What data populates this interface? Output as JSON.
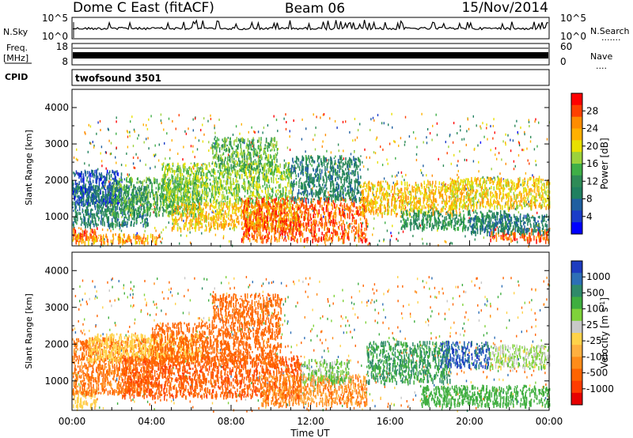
{
  "header": {
    "station": "Dome C East (fitACF)",
    "beam": "Beam 06",
    "date": "15/Nov/2014"
  },
  "side_labels": {
    "nsky": "N.Sky",
    "freq_line1": "Freq.",
    "freq_line2": "[MHz]",
    "cpid": "CPID",
    "nsearch": "N.Search",
    "nsearch_dots": ".......",
    "nave": "Nave",
    "nave_dots": "...."
  },
  "cpid_text": "twofsound 3501",
  "chart_data": [
    {
      "type": "line",
      "name": "noise-panel",
      "left_ticks": [
        "10^5",
        "10^0"
      ],
      "right_ticks": [
        "10^5",
        "10^0"
      ]
    },
    {
      "type": "line",
      "name": "freq-nave-panel",
      "left_ticks": [
        "18",
        "8"
      ],
      "right_ticks": [
        "60",
        "0"
      ]
    },
    {
      "type": "heatmap",
      "name": "power-panel",
      "ylabel": "Slant Range [km]",
      "ylim": [
        200,
        4500
      ],
      "yticks": [
        1000,
        2000,
        3000,
        4000
      ],
      "xlim": [
        0,
        24
      ],
      "colorbar": {
        "label": "Power [dB]",
        "labels": [
          "28",
          "24",
          "20",
          "16",
          "12",
          "8",
          "4"
        ],
        "colors": [
          "#ff0000",
          "#ff4000",
          "#ff8c00",
          "#ffb000",
          "#e8e000",
          "#9cd23c",
          "#3faf47",
          "#2e8b57",
          "#208060",
          "#1f5fa0",
          "#1a3cc8",
          "#0000ff"
        ]
      },
      "bands": [
        {
          "t0": 0.0,
          "t1": 1.3,
          "r0": 400,
          "r1": 720,
          "val": 28
        },
        {
          "t0": 0.0,
          "t1": 4.5,
          "r0": 320,
          "r1": 550,
          "val": 24
        },
        {
          "t0": 0.0,
          "t1": 3.8,
          "r0": 800,
          "r1": 1900,
          "val": 10
        },
        {
          "t0": 0.0,
          "t1": 2.5,
          "r0": 1400,
          "r1": 2300,
          "val": 6
        },
        {
          "t0": 2.0,
          "t1": 6.5,
          "r0": 1100,
          "r1": 2100,
          "val": 14
        },
        {
          "t0": 4.5,
          "t1": 11.0,
          "r0": 1400,
          "r1": 2500,
          "val": 17
        },
        {
          "t0": 5.0,
          "t1": 11.5,
          "r0": 700,
          "r1": 1400,
          "val": 22
        },
        {
          "t0": 7.0,
          "t1": 10.3,
          "r0": 2300,
          "r1": 3200,
          "val": 15
        },
        {
          "t0": 8.5,
          "t1": 14.8,
          "r0": 380,
          "r1": 1550,
          "val": 27
        },
        {
          "t0": 11.0,
          "t1": 14.5,
          "r0": 1500,
          "r1": 2700,
          "val": 10
        },
        {
          "t0": 14.5,
          "t1": 19.5,
          "r0": 1100,
          "r1": 2000,
          "val": 22
        },
        {
          "t0": 16.5,
          "t1": 22.0,
          "r0": 700,
          "r1": 1200,
          "val": 12
        },
        {
          "t0": 19.0,
          "t1": 24.0,
          "r0": 1300,
          "r1": 2100,
          "val": 21
        },
        {
          "t0": 21.0,
          "t1": 24.0,
          "r0": 380,
          "r1": 700,
          "val": 27
        },
        {
          "t0": 20.0,
          "t1": 24.0,
          "r0": 600,
          "r1": 1100,
          "val": 9
        }
      ]
    },
    {
      "type": "heatmap",
      "name": "velocity-panel",
      "xlabel": "Time UT",
      "ylabel": "Slant Range [km]",
      "ylim": [
        200,
        4500
      ],
      "yticks": [
        1000,
        2000,
        3000,
        4000
      ],
      "xlim": [
        0,
        24
      ],
      "xticks": [
        "00:00",
        "04:00",
        "08:00",
        "12:00",
        "16:00",
        "20:00",
        "00:00"
      ],
      "colorbar": {
        "label": "Velocity [m s",
        "label_sup": "-1",
        "label_end": "]",
        "labels": [
          "1000",
          "500",
          "100",
          "25",
          "-25",
          "-100",
          "-500",
          "-1000"
        ],
        "colors": [
          "#1e3cc0",
          "#2d6fb6",
          "#2f8a6a",
          "#3fae3f",
          "#7fd23a",
          "#c8c8c8",
          "#ffd24a",
          "#ffb040",
          "#ff8c1a",
          "#ff6400",
          "#ff3c00",
          "#e60000"
        ]
      },
      "bands": [
        {
          "t0": 0.0,
          "t1": 1.2,
          "r0": 320,
          "r1": 800,
          "val": -10
        },
        {
          "t0": 0.0,
          "t1": 4.0,
          "r0": 700,
          "r1": 2200,
          "val": -120
        },
        {
          "t0": 0.8,
          "t1": 6.5,
          "r0": 1600,
          "r1": 2300,
          "val": 0
        },
        {
          "t0": 2.5,
          "t1": 11.5,
          "r0": 600,
          "r1": 1700,
          "val": -250
        },
        {
          "t0": 4.0,
          "t1": 10.5,
          "r0": 1500,
          "r1": 2600,
          "val": -180
        },
        {
          "t0": 7.0,
          "t1": 10.5,
          "r0": 2600,
          "r1": 3400,
          "val": -150
        },
        {
          "t0": 9.5,
          "t1": 14.8,
          "r0": 400,
          "r1": 1200,
          "val": -80
        },
        {
          "t0": 11.5,
          "t1": 14.0,
          "r0": 1000,
          "r1": 1600,
          "val": 80
        },
        {
          "t0": 14.8,
          "t1": 19.0,
          "r0": 1000,
          "r1": 2100,
          "val": 300
        },
        {
          "t0": 18.5,
          "t1": 21.0,
          "r0": 1400,
          "r1": 2100,
          "val": 700
        },
        {
          "t0": 17.5,
          "t1": 24.0,
          "r0": 380,
          "r1": 900,
          "val": 200
        },
        {
          "t0": 21.0,
          "t1": 24.0,
          "r0": 1400,
          "r1": 2000,
          "val": 60
        }
      ]
    }
  ]
}
